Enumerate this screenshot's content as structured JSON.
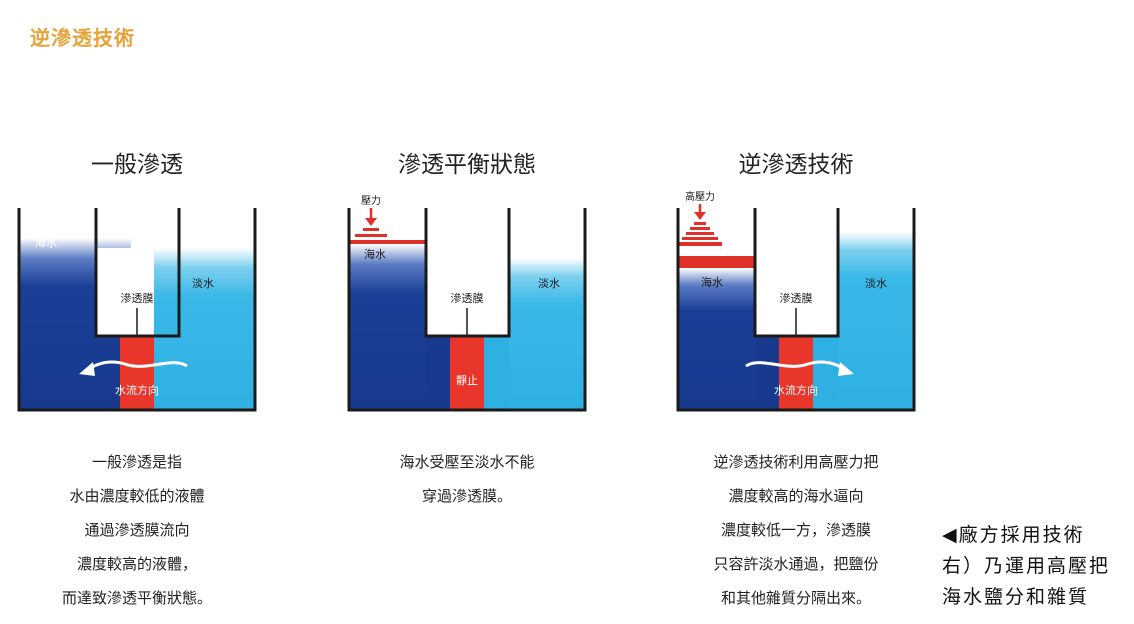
{
  "heading": "逆滲透技術",
  "panels": [
    {
      "title": "一般滲透",
      "labels": {
        "seawater": "海水",
        "membrane": "滲透膜",
        "freshwater": "淡水",
        "flow": "水流方向"
      },
      "description": [
        "一般滲透是指",
        "水由濃度較低的液體",
        "通過滲透膜流向",
        "濃度較高的液體，",
        "而達致滲透平衡狀態。"
      ]
    },
    {
      "title": "滲透平衡狀態",
      "labels": {
        "pressure": "壓力",
        "seawater": "海水",
        "membrane": "滲透膜",
        "freshwater": "淡水",
        "still": "靜止"
      },
      "description": [
        "海水受壓至淡水不能",
        "穿過滲透膜。"
      ]
    },
    {
      "title": "逆滲透技術",
      "labels": {
        "pressure": "高壓力",
        "seawater": "海水",
        "membrane": "滲透膜",
        "freshwater": "淡水",
        "flow": "水流方向"
      },
      "description": [
        "逆滲透技術利用高壓力把",
        "濃度較高的海水逼向",
        "濃度較低一方，滲透膜",
        "只容許淡水通過，把鹽份",
        "和其他雜質分隔出來。"
      ]
    }
  ],
  "caption": [
    "◀廠方採用技術",
    "右）乃運用高壓把",
    "海水鹽分和雜質"
  ],
  "colors": {
    "seawater": "#1a3f96",
    "freshwater": "#3ab8e8",
    "membrane": "#e8362a",
    "pressure": "#e0302a",
    "heading": "#e8a23a"
  }
}
